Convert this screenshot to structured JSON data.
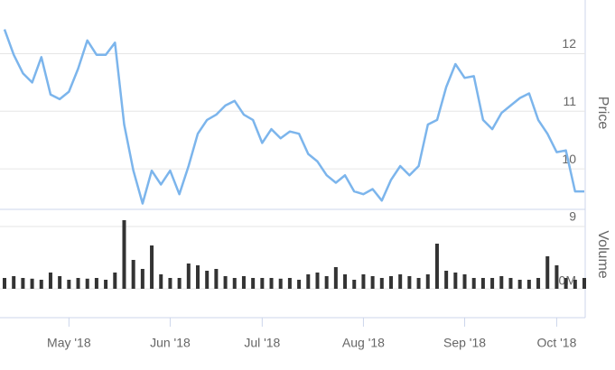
{
  "chart_data": {
    "type": "stock",
    "categories": [
      null,
      null,
      null,
      null,
      null,
      null,
      null,
      "May '18",
      null,
      null,
      null,
      null,
      null,
      null,
      null,
      null,
      null,
      null,
      "Jun '18",
      null,
      null,
      null,
      null,
      null,
      null,
      null,
      null,
      null,
      "Jul '18",
      null,
      null,
      null,
      null,
      null,
      null,
      null,
      null,
      null,
      null,
      "Aug '18",
      null,
      null,
      null,
      null,
      null,
      null,
      null,
      null,
      null,
      null,
      "Sep '18",
      null,
      null,
      null,
      null,
      null,
      null,
      null,
      null,
      null,
      "Oct '18",
      null,
      null,
      null
    ],
    "series": [
      {
        "name": "Price",
        "color": "#7cb5ec",
        "values": [
          12.42,
          11.98,
          11.66,
          11.5,
          11.94,
          11.29,
          11.21,
          11.34,
          11.74,
          12.23,
          11.98,
          11.98,
          12.19,
          10.77,
          9.97,
          9.4,
          9.97,
          9.73,
          9.97,
          9.56,
          10.05,
          10.61,
          10.85,
          10.94,
          11.1,
          11.18,
          10.94,
          10.85,
          10.45,
          10.69,
          10.53,
          10.65,
          10.61,
          10.26,
          10.13,
          9.89,
          9.76,
          9.89,
          9.61,
          9.56,
          9.65,
          9.45,
          9.81,
          10.05,
          9.89,
          10.05,
          10.77,
          10.85,
          11.42,
          11.82,
          11.58,
          11.61,
          10.85,
          10.69,
          10.97,
          11.1,
          11.23,
          11.31,
          10.85,
          10.61,
          10.29,
          10.32,
          9.61,
          9.61
        ]
      },
      {
        "name": "Volume",
        "color": "#333333",
        "axis": "y2",
        "values": [
          0.3,
          0.35,
          0.3,
          0.28,
          0.25,
          0.45,
          0.35,
          0.25,
          0.3,
          0.28,
          0.3,
          0.25,
          0.45,
          1.9,
          0.8,
          0.55,
          1.2,
          0.4,
          0.3,
          0.3,
          0.7,
          0.65,
          0.5,
          0.55,
          0.35,
          0.3,
          0.35,
          0.3,
          0.3,
          0.3,
          0.28,
          0.3,
          0.25,
          0.4,
          0.45,
          0.35,
          0.6,
          0.4,
          0.25,
          0.4,
          0.35,
          0.3,
          0.35,
          0.4,
          0.35,
          0.3,
          0.4,
          1.25,
          0.5,
          0.45,
          0.4,
          0.3,
          0.3,
          0.3,
          0.35,
          0.3,
          0.25,
          0.25,
          0.3,
          0.9,
          0.65,
          0.3,
          0.25,
          0.3
        ]
      }
    ],
    "ylabel": "Price",
    "y2label": "Volume",
    "ylim": [
      9,
      12.9
    ],
    "yticks": [
      9,
      10,
      11,
      12
    ],
    "y2lim": [
      0,
      2
    ],
    "y2ticks": [
      {
        "value": 0,
        "label": "0M"
      }
    ],
    "grid": true
  }
}
